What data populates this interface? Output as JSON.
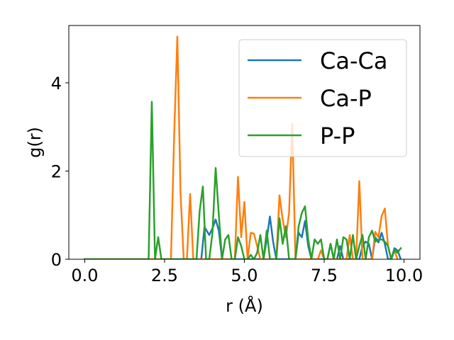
{
  "chart_data": {
    "type": "line",
    "xlabel": "r (Å)",
    "ylabel": "g(r)",
    "xlim": [
      -0.5,
      10.5
    ],
    "ylim": [
      0,
      5.3
    ],
    "xticks": [
      0.0,
      2.5,
      5.0,
      7.5,
      10.0
    ],
    "xtick_labels": [
      "0.0",
      "2.5",
      "5.0",
      "7.5",
      "10.0"
    ],
    "yticks": [
      0,
      2,
      4
    ],
    "ytick_labels": [
      "0",
      "2",
      "4"
    ],
    "legend_position": "top-right",
    "grid": false,
    "series": [
      {
        "name": "Ca-Ca",
        "color": "#1f77b4",
        "x": [
          0.0,
          3.5,
          3.65,
          3.75,
          3.9,
          4.0,
          4.1,
          4.2,
          4.3,
          4.45,
          5.6,
          5.7,
          5.8,
          5.9,
          6.0,
          6.6,
          6.7,
          6.8,
          6.9,
          7.0,
          7.1,
          7.6,
          7.7,
          7.8,
          7.9,
          8.0,
          8.1,
          8.2,
          8.6,
          8.7,
          8.8,
          8.9,
          9.0,
          9.1,
          9.2,
          9.3,
          9.4,
          9.5,
          9.6,
          9.7,
          9.8,
          9.9
        ],
        "y": [
          0.0,
          0.0,
          0.0,
          0.73,
          0.55,
          0.7,
          0.9,
          0.65,
          0.0,
          0.0,
          0.0,
          0.45,
          0.97,
          0.4,
          0.0,
          0.0,
          0.6,
          0.5,
          0.87,
          0.3,
          0.0,
          0.0,
          0.35,
          0.0,
          0.0,
          0.3,
          0.0,
          0.0,
          0.0,
          0.3,
          0.4,
          0.35,
          0.0,
          0.5,
          0.38,
          0.6,
          0.35,
          0.0,
          0.0,
          0.25,
          0.2,
          0.0
        ]
      },
      {
        "name": "Ca-P",
        "color": "#ff7f0e",
        "x": [
          0.0,
          2.7,
          2.8,
          2.9,
          3.0,
          3.1,
          3.2,
          3.3,
          3.4,
          3.5,
          4.7,
          4.8,
          4.9,
          5.0,
          5.1,
          5.2,
          5.3,
          5.4,
          5.5,
          6.0,
          6.1,
          6.2,
          6.3,
          6.4,
          6.5,
          6.6,
          6.7,
          7.3,
          7.4,
          7.5,
          8.2,
          8.3,
          8.4,
          8.5,
          8.6,
          8.7,
          8.8,
          8.9,
          9.0,
          9.1,
          9.2,
          9.3,
          9.4,
          9.5,
          9.6,
          9.7,
          9.8
        ],
        "y": [
          0.0,
          0.0,
          2.8,
          5.05,
          1.5,
          0.0,
          0.0,
          1.48,
          0.0,
          0.0,
          0.0,
          1.87,
          0.5,
          1.3,
          0.0,
          0.6,
          0.58,
          0.3,
          0.0,
          0.0,
          1.45,
          0.9,
          0.5,
          1.05,
          3.07,
          0.0,
          0.0,
          0.0,
          0.2,
          0.0,
          0.0,
          0.55,
          0.0,
          0.0,
          1.77,
          0.0,
          0.0,
          0.0,
          0.0,
          0.62,
          0.5,
          0.98,
          1.15,
          0.3,
          0.0,
          0.2,
          0.0
        ]
      },
      {
        "name": "P-P",
        "color": "#2ca02c",
        "x": [
          0.0,
          2.0,
          2.1,
          2.2,
          2.3,
          2.4,
          2.5,
          3.5,
          3.6,
          3.7,
          3.8,
          3.9,
          4.0,
          4.1,
          4.2,
          4.3,
          4.4,
          4.5,
          4.6,
          4.7,
          4.8,
          4.9,
          5.0,
          5.1,
          5.2,
          5.3,
          5.4,
          5.5,
          5.6,
          5.7,
          5.8,
          5.9,
          6.0,
          6.1,
          6.2,
          6.3,
          6.4,
          6.5,
          6.6,
          6.7,
          6.8,
          6.9,
          7.0,
          7.1,
          7.2,
          7.3,
          7.4,
          7.5,
          7.6,
          7.7,
          7.8,
          7.9,
          8.0,
          8.1,
          8.2,
          8.3,
          8.4,
          8.5,
          8.6,
          8.7,
          8.8,
          8.9,
          9.0,
          9.1,
          9.2,
          9.3,
          9.4,
          9.5,
          9.6,
          9.7,
          9.8,
          9.9
        ],
        "y": [
          0.0,
          0.0,
          3.57,
          0.0,
          0.5,
          0.0,
          0.0,
          0.0,
          1.1,
          1.65,
          0.0,
          0.0,
          0.6,
          2.07,
          1.0,
          0.0,
          0.45,
          0.55,
          0.0,
          0.0,
          0.5,
          0.3,
          0.0,
          0.0,
          0.1,
          0.0,
          0.15,
          0.55,
          0.0,
          0.65,
          0.0,
          0.0,
          0.0,
          0.93,
          0.35,
          0.75,
          0.0,
          0.0,
          0.0,
          0.75,
          1.05,
          1.2,
          0.45,
          0.0,
          0.45,
          0.35,
          0.45,
          0.0,
          0.0,
          0.35,
          0.0,
          0.45,
          0.0,
          0.5,
          0.45,
          0.0,
          0.55,
          0.0,
          0.3,
          0.55,
          0.0,
          0.5,
          0.65,
          0.4,
          0.45,
          0.45,
          0.4,
          0.3,
          0.0,
          0.2,
          0.15,
          0.25
        ]
      }
    ]
  }
}
